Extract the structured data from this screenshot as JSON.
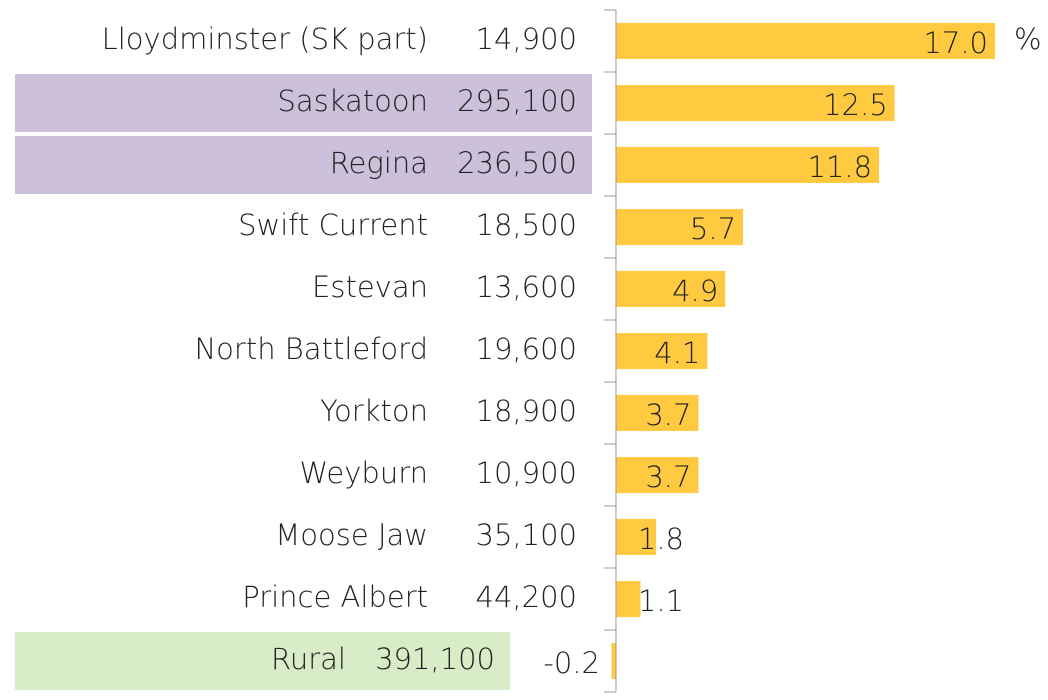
{
  "chart_data": {
    "type": "bar",
    "orientation": "horizontal",
    "categories": [
      "Lloydminster (SK part)",
      "Saskatoon",
      "Regina",
      "Swift Current",
      "Estevan",
      "North Battleford",
      "Yorkton",
      "Weyburn",
      "Moose Jaw",
      "Prince Albert",
      "Rural"
    ],
    "populations": [
      {
        "value": 14900,
        "label": "14,900"
      },
      {
        "value": 295100,
        "label": "295,100"
      },
      {
        "value": 236500,
        "label": "236,500"
      },
      {
        "value": 18500,
        "label": "18,500"
      },
      {
        "value": 13600,
        "label": "13,600"
      },
      {
        "value": 19600,
        "label": "19,600"
      },
      {
        "value": 18900,
        "label": "18,900"
      },
      {
        "value": 10900,
        "label": "10,900"
      },
      {
        "value": 35100,
        "label": "35,100"
      },
      {
        "value": 44200,
        "label": "44,200"
      },
      {
        "value": 391100,
        "label": "391,100"
      }
    ],
    "values": [
      17.0,
      12.5,
      11.8,
      5.7,
      4.9,
      4.1,
      3.7,
      3.7,
      1.8,
      1.1,
      -0.2
    ],
    "value_labels": [
      "17.0",
      "12.5",
      "11.8",
      "5.7",
      "4.9",
      "4.1",
      "3.7",
      "3.7",
      "1.8",
      "1.1",
      "-0.2"
    ],
    "unit": "%",
    "color": "#ffc940",
    "category_backgrounds": [
      null,
      "#ccc0da",
      "#ccc0da",
      null,
      null,
      null,
      null,
      null,
      null,
      null,
      "#d8ecc8"
    ],
    "xlim": [
      -0.2,
      17.0
    ]
  }
}
